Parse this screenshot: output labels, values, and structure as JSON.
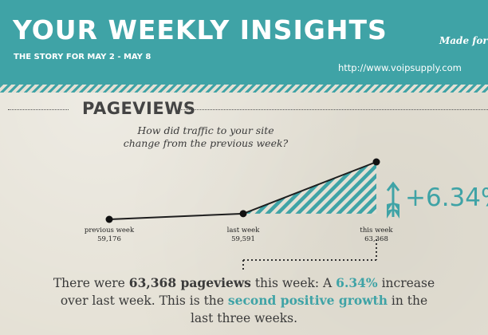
{
  "header": {
    "title": "YOUR WEEKLY INSIGHTS",
    "subtitle": "THE STORY FOR MAY 2 - MAY 8",
    "made_for_label": "Made for:",
    "site_url": "http://www.voipsupply.com"
  },
  "section": {
    "title": "PAGEVIEWS",
    "question": "How did traffic to your site change from the previous week?"
  },
  "chart_data": {
    "type": "line",
    "categories": [
      "previous week",
      "last week",
      "this week"
    ],
    "values": [
      59176,
      59591,
      63368
    ],
    "value_labels": [
      "59,176",
      "59,591",
      "63,368"
    ],
    "change_label": "+6.34%",
    "trend": "up"
  },
  "summary": {
    "p1": "There were ",
    "pageviews": "63,368 pageviews",
    "p2": " this week: A ",
    "percent": "6.34%",
    "p3": " increase over last week. This is the ",
    "growth": "second positive growth",
    "p4": " in the last three weeks."
  },
  "colors": {
    "accent": "#3fa3a6",
    "text": "#3a3a3a",
    "paper": "#e4e0d4"
  }
}
